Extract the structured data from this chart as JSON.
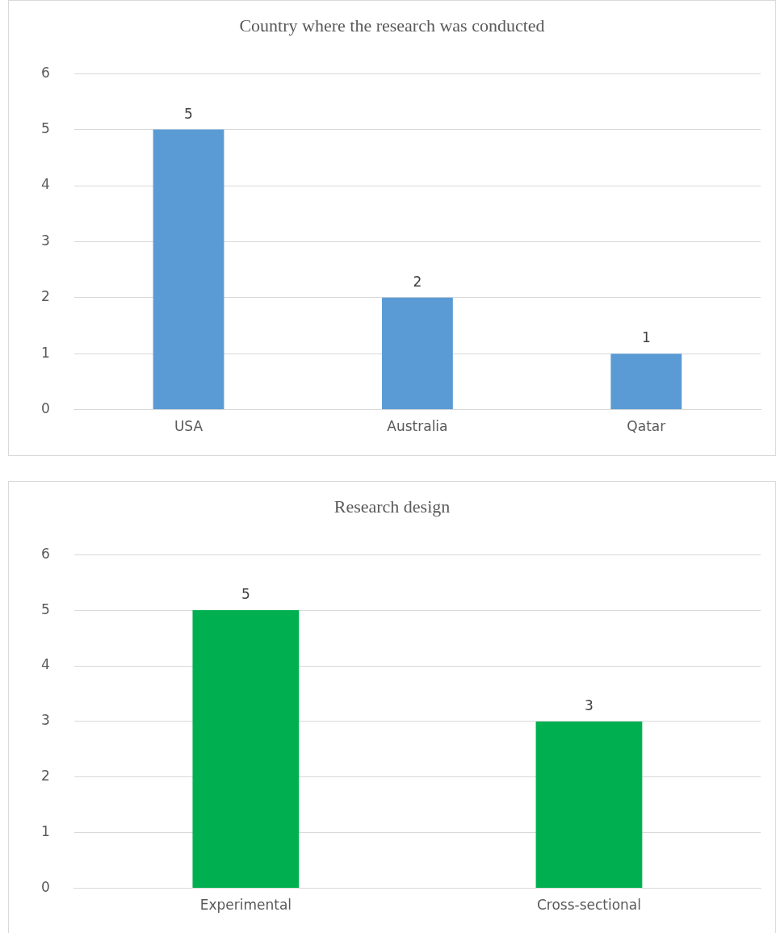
{
  "chart_data": [
    {
      "type": "bar",
      "title": "Country where the research was conducted",
      "categories": [
        "USA",
        "Australia",
        "Qatar"
      ],
      "values": [
        5,
        2,
        1
      ],
      "color": "#5b9bd5",
      "ylim": [
        0,
        6
      ],
      "yticks": [
        0,
        1,
        2,
        3,
        4,
        5,
        6
      ],
      "grid": "y",
      "data_labels": true
    },
    {
      "type": "bar",
      "title": "Research design",
      "categories": [
        "Experimental",
        "Cross-sectional"
      ],
      "values": [
        5,
        3
      ],
      "color": "#00b050",
      "ylim": [
        0,
        6
      ],
      "yticks": [
        0,
        1,
        2,
        3,
        4,
        5,
        6
      ],
      "grid": "y",
      "data_labels": true
    }
  ]
}
